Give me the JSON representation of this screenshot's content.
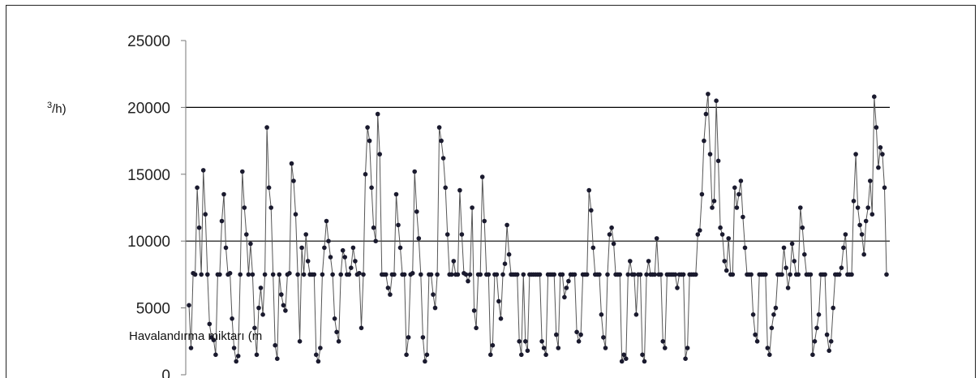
{
  "chart_data": {
    "type": "line",
    "title": "",
    "xlabel": "",
    "ylabel_parts": {
      "bottom": "Havalandırma miktarı (m",
      "top": "/h)",
      "superscript": "3"
    },
    "ylim": [
      0,
      25000
    ],
    "y_ticks": [
      "25000",
      "20000",
      "15000",
      "10000",
      "5000",
      "0"
    ],
    "y_tick_values": [
      25000,
      20000,
      15000,
      10000,
      5000,
      0
    ],
    "grid": "horizontal",
    "series": [
      {
        "values": [
          5200,
          2000,
          7600,
          7500,
          14000,
          11000,
          7500,
          15300,
          12000,
          7500,
          3800,
          2800,
          2600,
          1500,
          7500,
          7500,
          11500,
          13500,
          9500,
          7500,
          7600,
          4200,
          2000,
          1000,
          1400,
          7500,
          15200,
          12500,
          10500,
          7500,
          9800,
          7500,
          3500,
          1500,
          5000,
          6500,
          4500,
          7500,
          18500,
          14000,
          12500,
          7500,
          2200,
          1200,
          7500,
          6000,
          5200,
          4800,
          7500,
          7600,
          15800,
          14500,
          12000,
          7500,
          2500,
          9500,
          7500,
          10500,
          8500,
          7500,
          7500,
          7500,
          1500,
          1000,
          2000,
          7500,
          9500,
          11500,
          10000,
          8800,
          7500,
          4200,
          3200,
          2500,
          7500,
          9300,
          8800,
          7500,
          7500,
          8000,
          9500,
          8500,
          7500,
          7600,
          3500,
          7500,
          15000,
          18500,
          17500,
          14000,
          11000,
          10000,
          19500,
          16500,
          7500,
          7500,
          7500,
          6500,
          6000,
          7500,
          7500,
          13500,
          11200,
          9500,
          7500,
          7500,
          1500,
          2800,
          7500,
          7600,
          15200,
          12200,
          10200,
          7500,
          2800,
          1000,
          1500,
          7500,
          7500,
          6000,
          5000,
          7500,
          18500,
          17500,
          16200,
          14000,
          10500,
          7500,
          7500,
          8500,
          7500,
          7500,
          13800,
          10500,
          7600,
          7500,
          7000,
          7500,
          12500,
          4800,
          3500,
          7500,
          7500,
          14800,
          11500,
          7500,
          7500,
          1500,
          2200,
          7500,
          7500,
          5500,
          4200,
          7500,
          8300,
          11200,
          9000,
          7500,
          7500,
          7500,
          7500,
          2500,
          1500,
          7500,
          2500,
          1800,
          7500,
          7500,
          7500,
          7500,
          7500,
          7500,
          2500,
          2000,
          1500,
          7500,
          7500,
          7500,
          7500,
          3000,
          2000,
          7500,
          7500,
          5800,
          6500,
          7000,
          7500,
          7500,
          7500,
          3200,
          2500,
          3000,
          7500,
          7500,
          7500,
          13800,
          12300,
          9500,
          7500,
          7500,
          7500,
          4500,
          2800,
          2000,
          7500,
          10500,
          11000,
          9800,
          7500,
          7500,
          7500,
          1000,
          1500,
          1200,
          7500,
          8500,
          7500,
          7500,
          4500,
          7500,
          7500,
          1500,
          1000,
          7500,
          8500,
          7500,
          7500,
          7500,
          10200,
          7500,
          7500,
          2500,
          2000,
          7500,
          7500,
          7500,
          7500,
          7500,
          6500,
          7500,
          7500,
          7500,
          1200,
          2000,
          7500,
          7500,
          7500,
          7500,
          10500,
          10800,
          13500,
          17500,
          19500,
          21000,
          16500,
          12500,
          13000,
          20500,
          16000,
          11000,
          10500,
          8500,
          7800,
          10200,
          7500,
          7500,
          14000,
          12500,
          13500,
          14500,
          11800,
          9500,
          7500,
          7500,
          7500,
          4500,
          3000,
          2500,
          7500,
          7500,
          7500,
          7500,
          2000,
          1500,
          3500,
          4500,
          5000,
          7500,
          7500,
          7500,
          9500,
          8000,
          6500,
          7500,
          9800,
          8500,
          7500,
          7500,
          12500,
          11000,
          9000,
          7500,
          7500,
          7500,
          1500,
          2500,
          3500,
          4500,
          7500,
          7500,
          7500,
          3000,
          1800,
          2500,
          5000,
          7500,
          7500,
          7500,
          8000,
          9500,
          10500,
          7500,
          7500,
          7500,
          13000,
          16500,
          12500,
          11200,
          10500,
          9000,
          11500,
          12500,
          14500,
          12000,
          20800,
          18500,
          15500,
          17000,
          16500,
          14000,
          7500
        ]
      }
    ]
  }
}
